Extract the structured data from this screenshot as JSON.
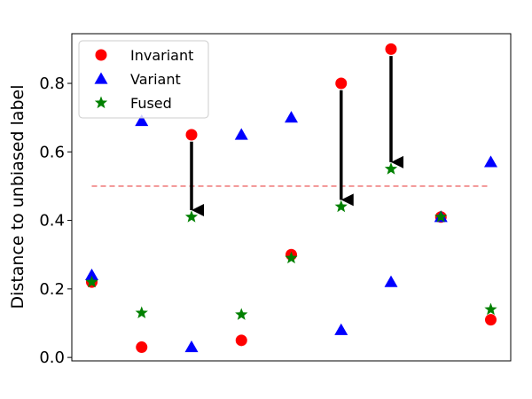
{
  "chart_data": {
    "type": "scatter",
    "title": "",
    "xlabel": "",
    "ylabel": "Distance to unbiased label",
    "x": [
      0,
      1,
      2,
      3,
      4,
      5,
      6,
      7,
      8
    ],
    "xlim": [
      -0.4,
      8.4
    ],
    "ylim": [
      -0.01,
      0.945
    ],
    "yticks": [
      0.0,
      0.2,
      0.4,
      0.6,
      0.8
    ],
    "ytick_labels": [
      "0.0",
      "0.2",
      "0.4",
      "0.6",
      "0.8"
    ],
    "grid": false,
    "legend_position": "top-left",
    "series": [
      {
        "name": "Invariant",
        "marker": "circle",
        "color": "#ff0000",
        "values": [
          0.22,
          0.03,
          0.65,
          0.05,
          0.3,
          0.8,
          0.9,
          0.41,
          0.11
        ]
      },
      {
        "name": "Variant",
        "marker": "triangle",
        "color": "#0000ff",
        "values": [
          0.24,
          0.69,
          0.03,
          0.65,
          0.7,
          0.08,
          0.22,
          0.41,
          0.57
        ]
      },
      {
        "name": "Fused",
        "marker": "star",
        "color": "#008000",
        "values": [
          0.22,
          0.13,
          0.41,
          0.125,
          0.29,
          0.44,
          0.55,
          0.41,
          0.14
        ]
      }
    ],
    "reference_line": {
      "y": 0.5,
      "style": "dashed",
      "color": "#f08080"
    },
    "arrows": [
      {
        "x": 2,
        "from": 0.63,
        "to": 0.43
      },
      {
        "x": 5,
        "from": 0.78,
        "to": 0.46
      },
      {
        "x": 6,
        "from": 0.88,
        "to": 0.57
      }
    ]
  }
}
